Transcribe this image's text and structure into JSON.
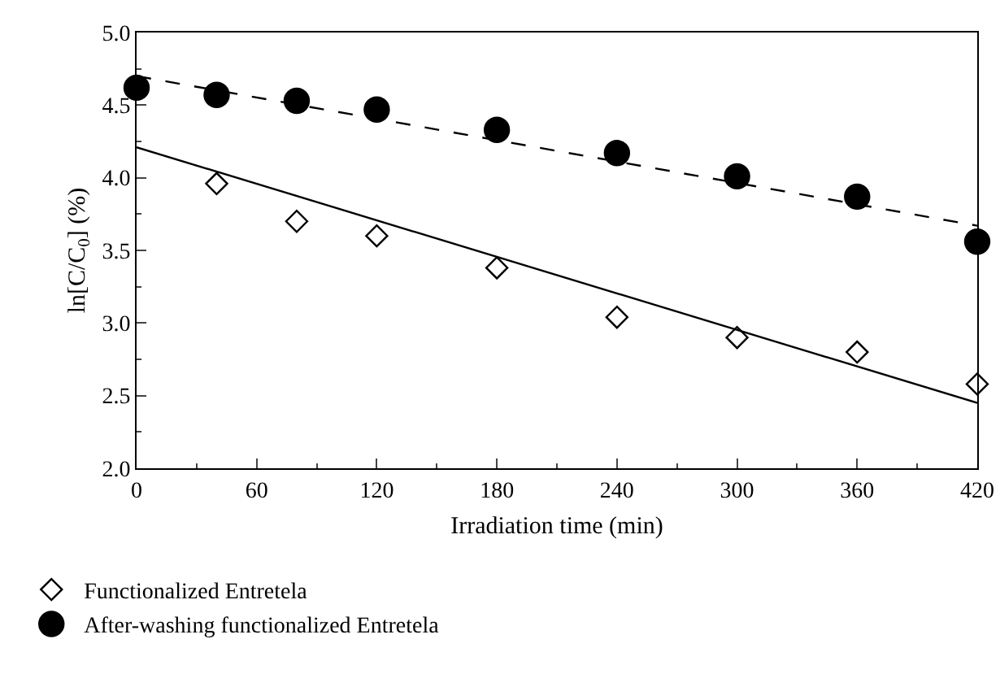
{
  "chart_data": {
    "type": "scatter",
    "xlabel": "Irradiation time (min)",
    "ylabel": "ln[C/C$_{0}$] (%)",
    "xlim": [
      0,
      420
    ],
    "xticks": [
      0,
      60,
      120,
      180,
      240,
      300,
      360,
      420
    ],
    "ylim": [
      2.0,
      5.0
    ],
    "yticks": [
      {
        "value": 2,
        "label": "2.0"
      },
      2.5,
      {
        "value": 3,
        "label": "3.0"
      },
      3.5,
      {
        "value": 4,
        "label": "4.0"
      },
      4.5,
      {
        "value": 5,
        "label": "5.0"
      }
    ],
    "grid": false,
    "legend": "bottom left",
    "series": [
      {
        "name": "Functionalized Entretela",
        "color": "#000000",
        "marker": "diamond",
        "x": [
          40,
          80,
          120,
          180,
          240,
          300,
          360,
          420
        ],
        "values": [
          3.96,
          3.7,
          3.6,
          3.38,
          3.04,
          2.9,
          2.8,
          2.58
        ]
      },
      {
        "name": "After-washing functionalized Entretela",
        "color": "#000000",
        "marker": "circle",
        "x": [
          0,
          40,
          80,
          120,
          180,
          240,
          300,
          360,
          420
        ],
        "values": [
          4.62,
          4.57,
          4.53,
          4.47,
          4.33,
          4.17,
          4.01,
          3.87,
          3.56
        ]
      },
      {
        "type": "line",
        "color": "#000000",
        "marker": "none",
        "line_style": "solid",
        "x": [
          0,
          420
        ],
        "values": [
          4.21,
          2.45
        ]
      },
      {
        "type": "line",
        "color": "#000000",
        "marker": "none",
        "line_style": "dashed",
        "x": [
          0,
          420
        ],
        "values": [
          4.7,
          3.67
        ]
      }
    ]
  }
}
